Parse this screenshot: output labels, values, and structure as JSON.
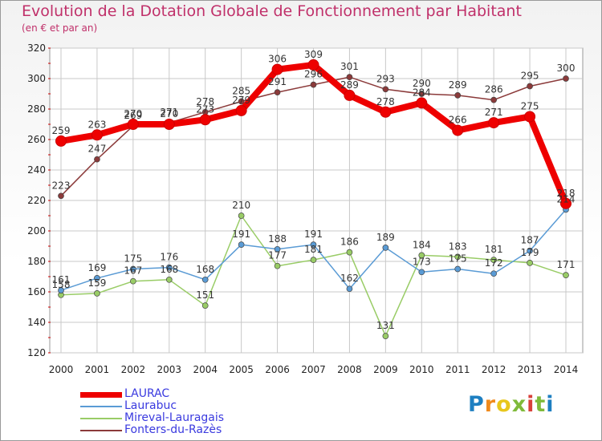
{
  "title": "Evolution de la Dotation Globale de Fonctionnement par Habitant",
  "subtitle": "(en € et par an)",
  "logo": {
    "text": "Proxiti",
    "colors": [
      "#1e7fc1",
      "#f08a1c",
      "#e8c71c",
      "#7fba3a",
      "#d8403a",
      "#7fba3a",
      "#1e7fc1"
    ]
  },
  "chart_data": {
    "type": "line",
    "title": "Evolution de la Dotation Globale de Fonctionnement par Habitant",
    "subtitle": "(en € et par an)",
    "xlabel": "",
    "ylabel": "",
    "x": [
      "2000",
      "2001",
      "2002",
      "2003",
      "2004",
      "2005",
      "2006",
      "2007",
      "2008",
      "2009",
      "2010",
      "2011",
      "2012",
      "2013",
      "2014"
    ],
    "ylim": [
      120,
      320
    ],
    "yticks": [
      120,
      140,
      160,
      180,
      200,
      220,
      240,
      260,
      280,
      300,
      320
    ],
    "grid": true,
    "legend": "bottom-left",
    "series": [
      {
        "name": "LAURAC",
        "color": "#ee0000",
        "values": [
          259,
          263,
          270,
          270,
          273,
          279,
          306,
          309,
          289,
          278,
          284,
          266,
          271,
          275,
          218
        ],
        "labels": [
          "259",
          "263",
          "270",
          "270",
          "273",
          "279",
          "306",
          "309",
          "289",
          "278",
          "284",
          "266",
          "271",
          "275",
          "218"
        ]
      },
      {
        "name": "Laurabuc",
        "color": "#5a9bd5",
        "values": [
          161,
          169,
          175,
          176,
          168,
          191,
          188,
          191,
          162,
          189,
          173,
          175,
          172,
          187,
          214
        ],
        "labels": [
          "161",
          "169",
          "175",
          "176",
          "168",
          "191",
          "188",
          "191",
          "162",
          "189",
          "173",
          "175",
          "172",
          "187",
          "214"
        ]
      },
      {
        "name": "Mireval-Lauragais",
        "color": "#99cc66",
        "values": [
          158,
          159,
          167,
          168,
          151,
          210,
          177,
          181,
          186,
          131,
          184,
          183,
          181,
          179,
          171
        ],
        "labels": [
          "158",
          "159",
          "167",
          "168",
          "151",
          "210",
          "177",
          "181",
          "186",
          "131",
          "184",
          "183",
          "181",
          "179",
          "171"
        ]
      },
      {
        "name": "Fonters-du-Razès",
        "color": "#8b3a3a",
        "values": [
          223,
          247,
          269,
          271,
          278,
          285,
          291,
          296,
          301,
          293,
          290,
          289,
          286,
          295,
          300
        ],
        "labels": [
          "223",
          "247",
          "269",
          "271",
          "278",
          "285",
          "291",
          "296",
          "301",
          "293",
          "290",
          "289",
          "286",
          "295",
          "300"
        ]
      }
    ]
  }
}
